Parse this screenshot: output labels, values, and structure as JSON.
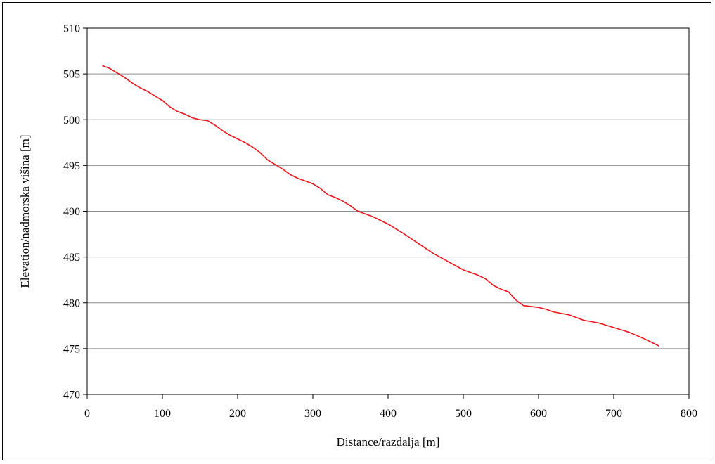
{
  "chart_data": {
    "type": "line",
    "title": "",
    "xlabel": "Distance/razdalja [m]",
    "ylabel": "Elevation/nadmorska višina [m]",
    "xlim": [
      0,
      800
    ],
    "ylim": [
      470,
      510
    ],
    "xticks": [
      0,
      100,
      200,
      300,
      400,
      500,
      600,
      700,
      800
    ],
    "yticks": [
      470,
      475,
      480,
      485,
      490,
      495,
      500,
      505,
      510
    ],
    "grid": "horizontal",
    "legend": "none",
    "line_color": "#e8141c",
    "series": [
      {
        "x": [
          20,
          30,
          40,
          50,
          60,
          70,
          80,
          90,
          100,
          110,
          120,
          130,
          140,
          150,
          160,
          170,
          180,
          190,
          200,
          210,
          220,
          230,
          240,
          250,
          260,
          270,
          280,
          290,
          300,
          310,
          320,
          330,
          340,
          350,
          360,
          370,
          380,
          390,
          400,
          420,
          440,
          460,
          480,
          500,
          520,
          530,
          540,
          550,
          560,
          570,
          580,
          590,
          600,
          610,
          620,
          640,
          660,
          680,
          700,
          720,
          740,
          760
        ],
        "y": [
          505.9,
          505.6,
          505.1,
          504.6,
          504.0,
          503.5,
          503.1,
          502.6,
          502.1,
          501.4,
          500.9,
          500.6,
          500.2,
          500.0,
          499.9,
          499.4,
          498.8,
          498.3,
          497.9,
          497.5,
          497.0,
          496.4,
          495.6,
          495.1,
          494.6,
          494.0,
          493.6,
          493.3,
          493.0,
          492.5,
          491.8,
          491.5,
          491.1,
          490.6,
          490.0,
          489.7,
          489.4,
          489.0,
          488.6,
          487.6,
          486.5,
          485.4,
          484.5,
          483.6,
          483.0,
          482.6,
          481.9,
          481.5,
          481.2,
          480.3,
          479.7,
          479.6,
          479.5,
          479.3,
          479.0,
          478.7,
          478.1,
          477.8,
          477.3,
          476.8,
          476.1,
          475.3
        ]
      }
    ]
  }
}
